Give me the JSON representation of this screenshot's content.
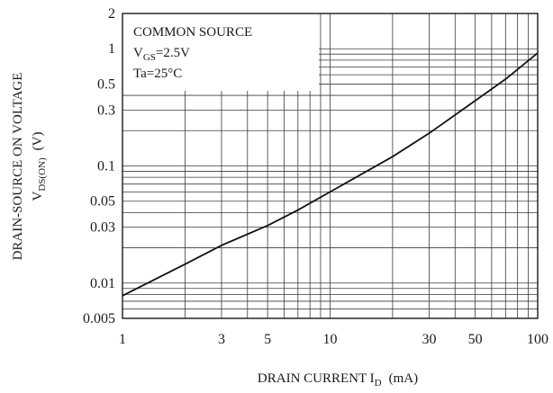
{
  "chart_data": {
    "type": "line",
    "x_scale": "log",
    "y_scale": "log",
    "xlim": [
      1,
      100
    ],
    "ylim": [
      0.005,
      2
    ],
    "x_ticks": [
      1,
      3,
      5,
      10,
      30,
      50,
      100
    ],
    "x_tick_labels": [
      "1",
      "3",
      "5",
      "10",
      "30",
      "50",
      "100"
    ],
    "y_ticks": [
      0.005,
      0.01,
      0.03,
      0.05,
      0.1,
      0.3,
      0.5,
      1,
      2
    ],
    "y_tick_labels": [
      "0.005",
      "0.01",
      "0.03",
      "0.05",
      "0.1",
      "0.3",
      "0.5",
      "1",
      "2"
    ],
    "xlabel": {
      "main": "DRAIN CURRENT I",
      "sub": "D",
      "unit": "(mA)"
    },
    "ylabel": {
      "line1": "DRAIN-SOURCE ON VOLTAGE",
      "main": "V",
      "sub": "DS(ON)",
      "unit": "(V)"
    },
    "annotation": {
      "line1": "COMMON SOURCE",
      "line2_main": "V",
      "line2_sub": "GS",
      "line2_rest": "=2.5V",
      "line3": "Ta=25°C"
    },
    "grid": true,
    "series": [
      {
        "x": [
          1,
          2,
          3,
          5,
          7,
          10,
          20,
          30,
          50,
          70,
          100
        ],
        "y": [
          0.0078,
          0.0145,
          0.021,
          0.031,
          0.042,
          0.06,
          0.12,
          0.19,
          0.36,
          0.55,
          0.92
        ]
      }
    ]
  }
}
